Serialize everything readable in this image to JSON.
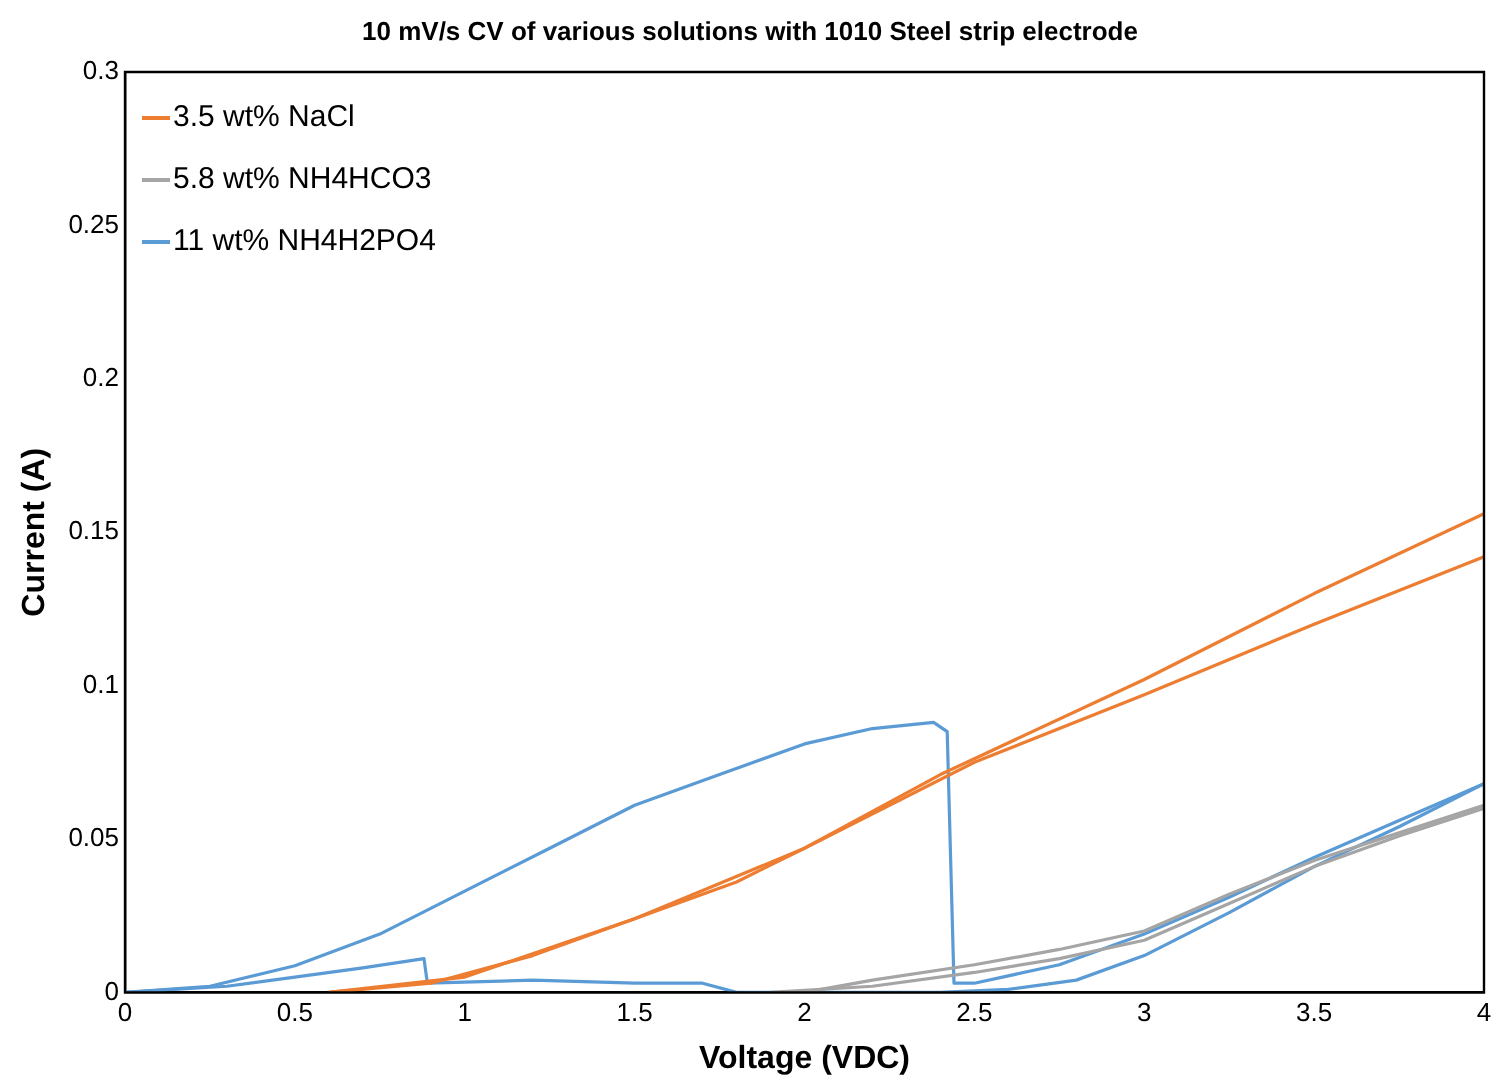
{
  "chart_data": {
    "type": "line",
    "title": "10 mV/s CV of various solutions with 1010 Steel strip electrode",
    "xlabel": "Voltage (VDC)",
    "ylabel": "Current (A)",
    "xlim": [
      0,
      4
    ],
    "xticks": [
      0,
      0.5,
      1,
      1.5,
      2,
      2.5,
      3,
      3.5,
      4
    ],
    "ylim": [
      0,
      0.3
    ],
    "yticks": [
      0,
      0.05,
      0.1,
      0.15,
      0.2,
      0.25,
      0.3
    ],
    "grid": false,
    "legend": "top left",
    "marker": "none",
    "series": [
      {
        "name": "3.5 wt% NaCl",
        "color": "#ed7d31",
        "x": [
          0.6,
          0.9,
          1.2,
          1.5,
          1.8,
          2.0,
          2.4,
          3.0,
          3.5,
          4.0
        ],
        "values": [
          0,
          0.003,
          0.012,
          0.024,
          0.036,
          0.047,
          0.071,
          0.102,
          0.13,
          0.156
        ]
      },
      {
        "color": "#ed7d31",
        "x": [
          0.6,
          1.0,
          1.5,
          2.0,
          2.5,
          3.0,
          3.5,
          4.0
        ],
        "values": [
          0,
          0.005,
          0.024,
          0.047,
          0.075,
          0.097,
          0.12,
          0.142
        ]
      },
      {
        "name": "5.8 wt% NH4HCO3",
        "color": "#a5a5a5",
        "x": [
          1.9,
          2.2,
          2.5,
          2.75,
          3.0,
          3.25,
          3.5,
          3.75,
          4.0
        ],
        "values": [
          0,
          0.002,
          0.0065,
          0.011,
          0.017,
          0.029,
          0.041,
          0.051,
          0.06
        ]
      },
      {
        "color": "#a5a5a5",
        "x": [
          2.0,
          2.2,
          2.5,
          2.75,
          3.0,
          3.25,
          3.5,
          3.75,
          4.0
        ],
        "values": [
          0,
          0.004,
          0.009,
          0.014,
          0.02,
          0.032,
          0.043,
          0.052,
          0.061
        ]
      },
      {
        "name": "11 wt% NH4H2PO4",
        "color": "#5b9bd5",
        "x": [
          0,
          0.3,
          0.5,
          0.7,
          0.88,
          0.89,
          1.2,
          1.5,
          1.7,
          1.8,
          2.0,
          2.4,
          2.6,
          2.8,
          3.0,
          3.25,
          3.5,
          3.75,
          4.0
        ],
        "values": [
          0,
          0.002,
          0.005,
          0.008,
          0.011,
          0.003,
          0.004,
          0.003,
          0.003,
          0,
          0,
          0,
          0.001,
          0.004,
          0.012,
          0.026,
          0.041,
          0.054,
          0.068
        ]
      },
      {
        "color": "#5b9bd5",
        "x": [
          0,
          0.25,
          0.5,
          0.75,
          1.0,
          1.25,
          1.5,
          1.75,
          2.0,
          2.2,
          2.38,
          2.42,
          2.44,
          2.5,
          2.75,
          3.0,
          3.25,
          3.5,
          3.75,
          4.0
        ],
        "values": [
          0,
          0.002,
          0.0087,
          0.019,
          0.033,
          0.047,
          0.061,
          0.071,
          0.081,
          0.086,
          0.088,
          0.085,
          0.003,
          0.003,
          0.009,
          0.019,
          0.031,
          0.044,
          0.056,
          0.068
        ]
      }
    ]
  }
}
